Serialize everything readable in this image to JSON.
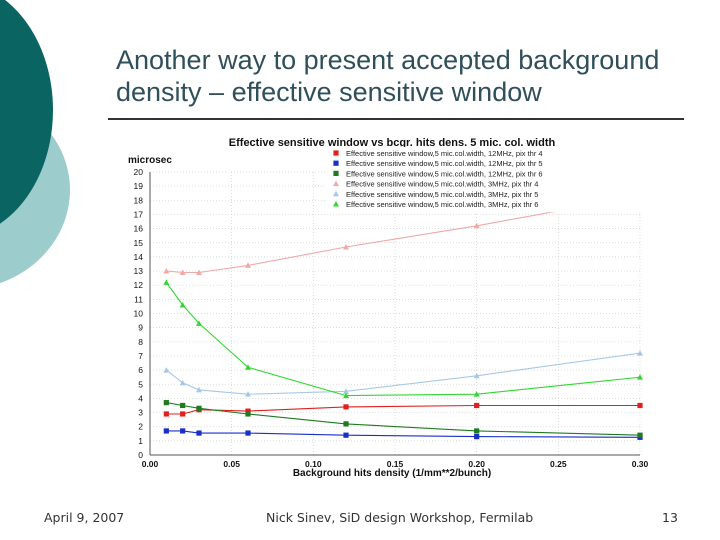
{
  "slide": {
    "title": "Another way to present accepted background density – effective sensitive window",
    "footer_date": "April 9, 2007",
    "footer_center": "Nick Sinev,  SiD design Workshop, Fermilab",
    "page_number": "13"
  },
  "colors": {
    "dark_teal": "#0a6462",
    "light_teal": "#9ccccc"
  },
  "chart_data": {
    "type": "line",
    "title": "Effective sensitive window vs bcgr. hits dens.  5 mic. col. width",
    "xlabel": "Background hits density (1/mm**2/bunch)",
    "ylabel": "microsec",
    "xlim": [
      0,
      0.3
    ],
    "ylim": [
      0,
      20
    ],
    "x_ticks": [
      "0.00",
      "0.05",
      "0.10",
      "0.15",
      "0.20",
      "0.25",
      "0.30"
    ],
    "y_ticks": [
      "0",
      "1",
      "2",
      "3",
      "4",
      "5",
      "6",
      "7",
      "8",
      "9",
      "10",
      "11",
      "12",
      "13",
      "14",
      "15",
      "16",
      "17",
      "18",
      "19",
      "20"
    ],
    "legend_position": "top-right",
    "series": [
      {
        "name": "Effective sensitive window,5 mic.col.width, 12MHz, pix thr 4",
        "color": "#e02020",
        "marker": "square",
        "x": [
          0.01,
          0.02,
          0.03,
          0.06,
          0.12,
          0.2,
          0.3
        ],
        "y": [
          2.9,
          2.9,
          3.2,
          3.1,
          3.4,
          3.5,
          3.5
        ]
      },
      {
        "name": "Effective sensitive window,5 mic.col.width, 12MHz, pix thr 5",
        "color": "#1a2ecc",
        "marker": "square",
        "x": [
          0.01,
          0.02,
          0.03,
          0.06,
          0.12,
          0.2,
          0.3
        ],
        "y": [
          1.7,
          1.7,
          1.55,
          1.55,
          1.4,
          1.3,
          1.25
        ]
      },
      {
        "name": "Effective sensitive window,5 mic.col.width, 12MHz, pix thr 6",
        "color": "#207a20",
        "marker": "square",
        "x": [
          0.01,
          0.02,
          0.03,
          0.06,
          0.12,
          0.2,
          0.3
        ],
        "y": [
          3.7,
          3.5,
          3.3,
          2.9,
          2.2,
          1.7,
          1.4
        ]
      },
      {
        "name": "Effective sensitive window,5 mic.col.width, 3MHz, pix thr 4",
        "color": "#f0a8a8",
        "marker": "triangle",
        "x": [
          0.01,
          0.02,
          0.03,
          0.06,
          0.12,
          0.2,
          0.3
        ],
        "y": [
          13.0,
          12.9,
          12.9,
          13.4,
          14.7,
          16.2,
          18.3
        ]
      },
      {
        "name": "Effective sensitive window,5 mic.col.width, 3MHz, pix thr 5",
        "color": "#a6c8e8",
        "marker": "triangle",
        "x": [
          0.01,
          0.02,
          0.03,
          0.06,
          0.12,
          0.2,
          0.3
        ],
        "y": [
          6.0,
          5.1,
          4.6,
          4.3,
          4.5,
          5.6,
          7.2
        ]
      },
      {
        "name": "Effective sensitive window,5 mic.col.width, 3MHz, pix thr 6",
        "color": "#30d830",
        "marker": "triangle",
        "x": [
          0.01,
          0.02,
          0.03,
          0.06,
          0.12,
          0.2,
          0.3
        ],
        "y": [
          12.2,
          10.6,
          9.3,
          6.2,
          4.2,
          4.3,
          5.5
        ]
      }
    ]
  }
}
